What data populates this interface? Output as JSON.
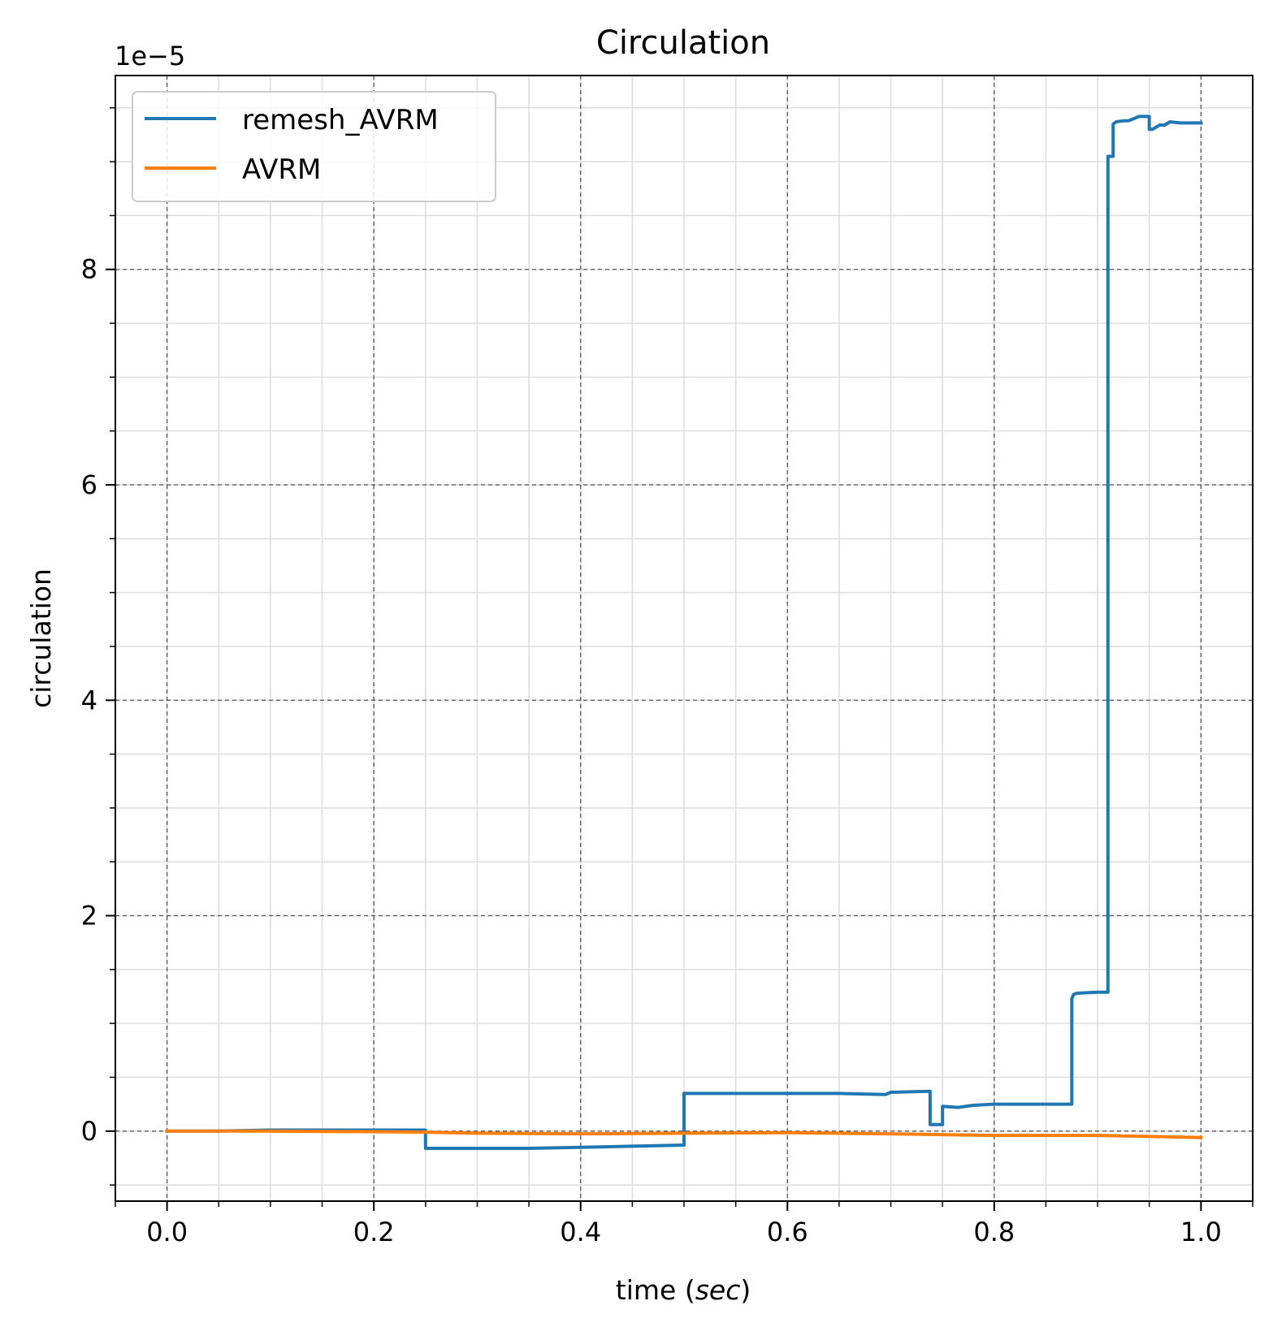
{
  "chart_data": {
    "type": "line",
    "title": "Circulation",
    "xlabel_prefix": "time (",
    "xlabel_italic": "sec",
    "xlabel_suffix": ")",
    "ylabel": "circulation",
    "y_offset_label": "1e−5",
    "xlim": [
      -0.05,
      1.05
    ],
    "ylim": [
      -0.65,
      9.8
    ],
    "x_ticks": [
      0.0,
      0.2,
      0.4,
      0.6,
      0.8,
      1.0
    ],
    "x_tick_labels": [
      "0.0",
      "0.2",
      "0.4",
      "0.6",
      "0.8",
      "1.0"
    ],
    "y_ticks": [
      0,
      2,
      4,
      6,
      8
    ],
    "y_tick_labels": [
      "0",
      "2",
      "4",
      "6",
      "8"
    ],
    "x_minor_step": 0.05,
    "y_minor_step": 0.5,
    "grid": true,
    "legend_position": "upper-left",
    "colors": {
      "remesh_AVRM": "#1f77b4",
      "AVRM": "#ff7f0e",
      "major_grid": "#555555",
      "minor_grid": "#dddddd"
    },
    "series": [
      {
        "name": "remesh_AVRM",
        "color": "#1f77b4",
        "x": [
          0.0,
          0.05,
          0.1,
          0.15,
          0.2,
          0.25,
          0.25,
          0.3,
          0.35,
          0.4,
          0.45,
          0.5,
          0.5,
          0.55,
          0.6,
          0.65,
          0.695,
          0.7,
          0.738,
          0.738,
          0.75,
          0.75,
          0.765,
          0.78,
          0.8,
          0.85,
          0.875,
          0.875,
          0.877,
          0.88,
          0.9,
          0.91,
          0.91,
          0.915,
          0.915,
          0.918,
          0.925,
          0.93,
          0.935,
          0.94,
          0.945,
          0.95,
          0.95,
          0.953,
          0.96,
          0.965,
          0.97,
          0.98,
          1.0
        ],
        "y": [
          0.0,
          0.0,
          0.01,
          0.01,
          0.01,
          0.01,
          -0.16,
          -0.16,
          -0.16,
          -0.15,
          -0.14,
          -0.13,
          0.35,
          0.35,
          0.35,
          0.35,
          0.34,
          0.36,
          0.37,
          0.06,
          0.06,
          0.23,
          0.22,
          0.24,
          0.25,
          0.25,
          0.25,
          1.23,
          1.27,
          1.28,
          1.29,
          1.29,
          9.05,
          9.05,
          9.35,
          9.37,
          9.38,
          9.38,
          9.4,
          9.42,
          9.42,
          9.42,
          9.3,
          9.3,
          9.34,
          9.34,
          9.37,
          9.36,
          9.36
        ]
      },
      {
        "name": "AVRM",
        "color": "#ff7f0e",
        "x": [
          0.0,
          0.1,
          0.2,
          0.25,
          0.3,
          0.4,
          0.5,
          0.6,
          0.7,
          0.8,
          0.9,
          1.0
        ],
        "y": [
          0.0,
          0.0,
          -0.005,
          -0.01,
          -0.02,
          -0.025,
          -0.02,
          -0.015,
          -0.025,
          -0.04,
          -0.04,
          -0.06
        ]
      }
    ]
  }
}
